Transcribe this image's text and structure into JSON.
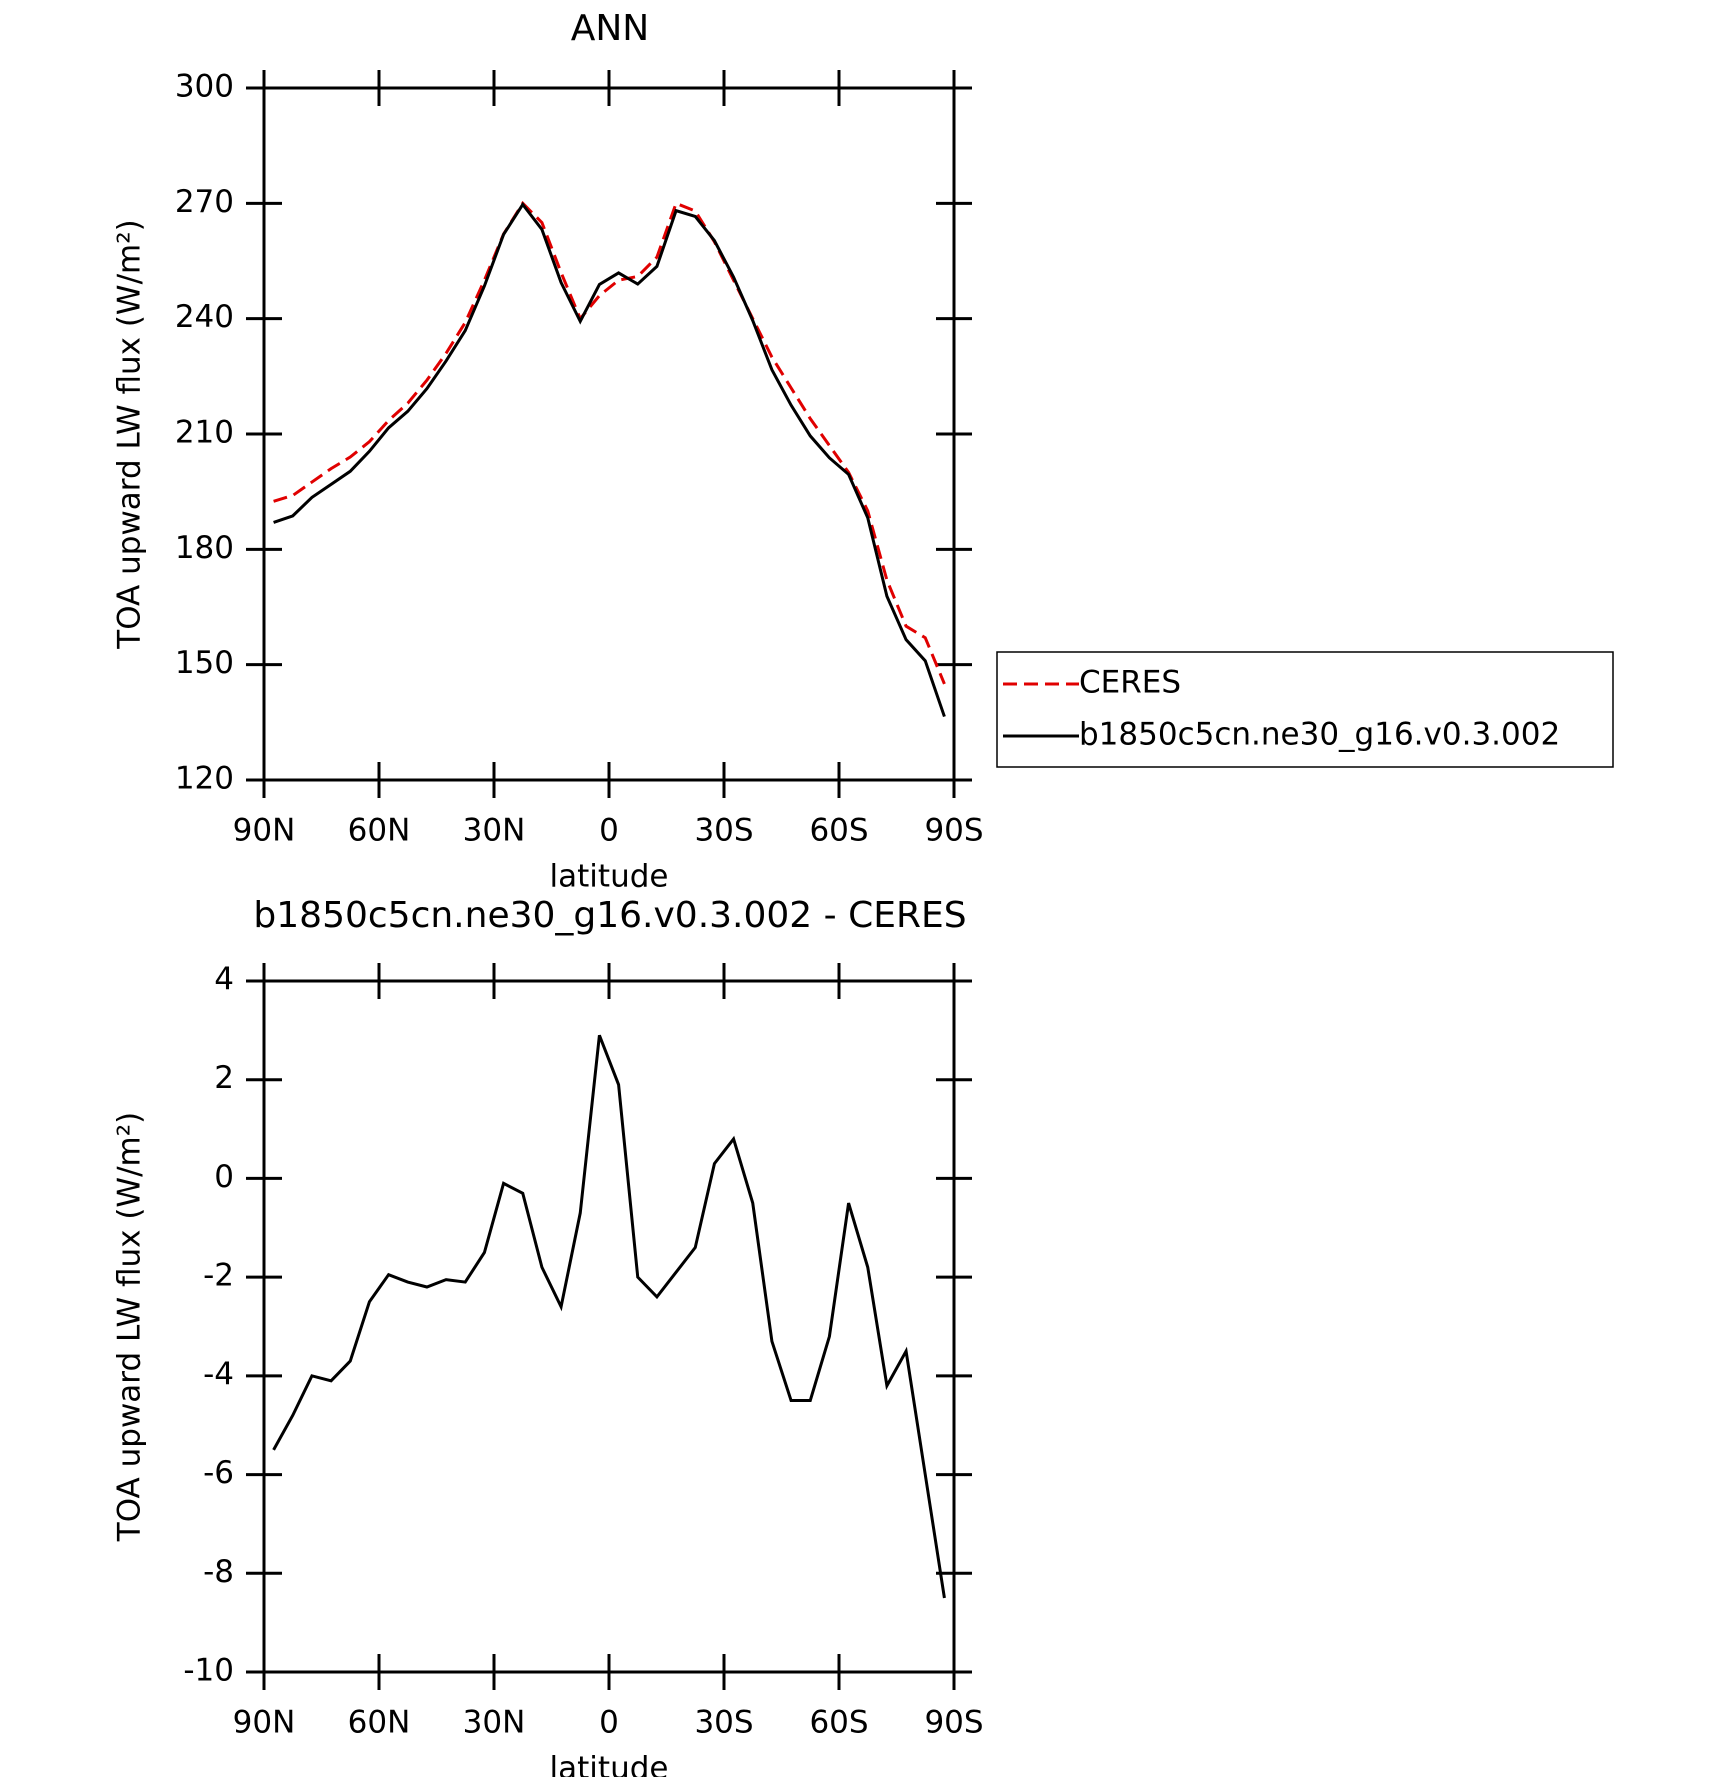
{
  "chart_data": [
    {
      "type": "line",
      "title": "ANN",
      "xlabel": "latitude",
      "ylabel": "TOA upward LW flux (W/m²)",
      "x": [
        87.5,
        82.5,
        77.5,
        72.5,
        67.5,
        62.5,
        57.5,
        52.5,
        47.5,
        42.5,
        37.5,
        32.5,
        27.5,
        22.5,
        17.5,
        12.5,
        7.5,
        2.5,
        -2.5,
        -7.5,
        -12.5,
        -17.5,
        -22.5,
        -27.5,
        -32.5,
        -37.5,
        -42.5,
        -47.5,
        -52.5,
        -57.5,
        -62.5,
        -67.5,
        -72.5,
        -77.5,
        -82.5,
        -87.5
      ],
      "series": [
        {
          "name": "CERES",
          "color": "#e00000",
          "dash": true,
          "values": [
            192.5,
            194,
            197.5,
            201,
            204,
            208,
            213.5,
            218,
            224,
            231,
            239,
            250,
            262,
            270,
            265,
            252,
            240,
            246,
            250,
            251,
            256,
            270,
            268,
            260,
            250,
            240,
            230,
            222,
            214,
            207,
            200,
            190,
            172,
            160,
            157,
            145
          ]
        },
        {
          "name": "b1850c5cn.ne30_g16.v0.3.002",
          "color": "#000000",
          "dash": false,
          "values": [
            187,
            188.7,
            193.5,
            196.9,
            200.3,
            205.5,
            211.6,
            215.9,
            221.8,
            229,
            236.9,
            248.5,
            261.9,
            269.7,
            263.2,
            249.4,
            239.3,
            248.9,
            251.9,
            249,
            253.6,
            268.1,
            266.6,
            260.3,
            250.8,
            239.5,
            226.7,
            217.5,
            209.5,
            203.8,
            199.5,
            188.2,
            167.8,
            156.5,
            151,
            136.5
          ]
        }
      ],
      "xlim": [
        90,
        -90
      ],
      "xticks": [
        {
          "value": 90,
          "label": "90N"
        },
        {
          "value": 60,
          "label": "60N"
        },
        {
          "value": 30,
          "label": "30N"
        },
        0,
        {
          "value": -30,
          "label": "30S"
        },
        {
          "value": -60,
          "label": "60S"
        },
        {
          "value": -90,
          "label": "90S"
        }
      ],
      "ylim": [
        120,
        300
      ],
      "yticks": [
        120,
        150,
        180,
        210,
        240,
        270,
        300
      ],
      "legend": "right"
    },
    {
      "type": "line",
      "title": "b1850c5cn.ne30_g16.v0.3.002 - CERES",
      "xlabel": "latitude",
      "ylabel": "TOA upward LW flux (W/m²)",
      "x": [
        87.5,
        82.5,
        77.5,
        72.5,
        67.5,
        62.5,
        57.5,
        52.5,
        47.5,
        42.5,
        37.5,
        32.5,
        27.5,
        22.5,
        17.5,
        12.5,
        7.5,
        2.5,
        -2.5,
        -7.5,
        -12.5,
        -17.5,
        -22.5,
        -27.5,
        -32.5,
        -37.5,
        -42.5,
        -47.5,
        -52.5,
        -57.5,
        -62.5,
        -67.5,
        -72.5,
        -77.5,
        -82.5,
        -87.5
      ],
      "series": [
        {
          "color": "#000000",
          "dash": false,
          "values": [
            -5.5,
            -4.8,
            -4.0,
            -4.1,
            -3.7,
            -2.5,
            -1.95,
            -2.1,
            -2.2,
            -2.05,
            -2.1,
            -1.5,
            -0.1,
            -0.3,
            -1.8,
            -2.6,
            -0.7,
            2.9,
            1.9,
            -2.0,
            -2.4,
            -1.9,
            -1.4,
            0.3,
            0.8,
            -0.5,
            -3.3,
            -4.5,
            -4.5,
            -3.2,
            -0.5,
            -1.8,
            -4.2,
            -3.5,
            -6.0,
            -8.5
          ]
        }
      ],
      "xlim": [
        90,
        -90
      ],
      "xticks": [
        {
          "value": 90,
          "label": "90N"
        },
        {
          "value": 60,
          "label": "60N"
        },
        {
          "value": 30,
          "label": "30N"
        },
        0,
        {
          "value": -30,
          "label": "30S"
        },
        {
          "value": -60,
          "label": "60S"
        },
        {
          "value": -90,
          "label": "90S"
        }
      ],
      "ylim": [
        -10,
        4
      ],
      "yticks": [
        -10,
        -8,
        -6,
        -4,
        -2,
        0,
        2,
        4
      ]
    }
  ]
}
